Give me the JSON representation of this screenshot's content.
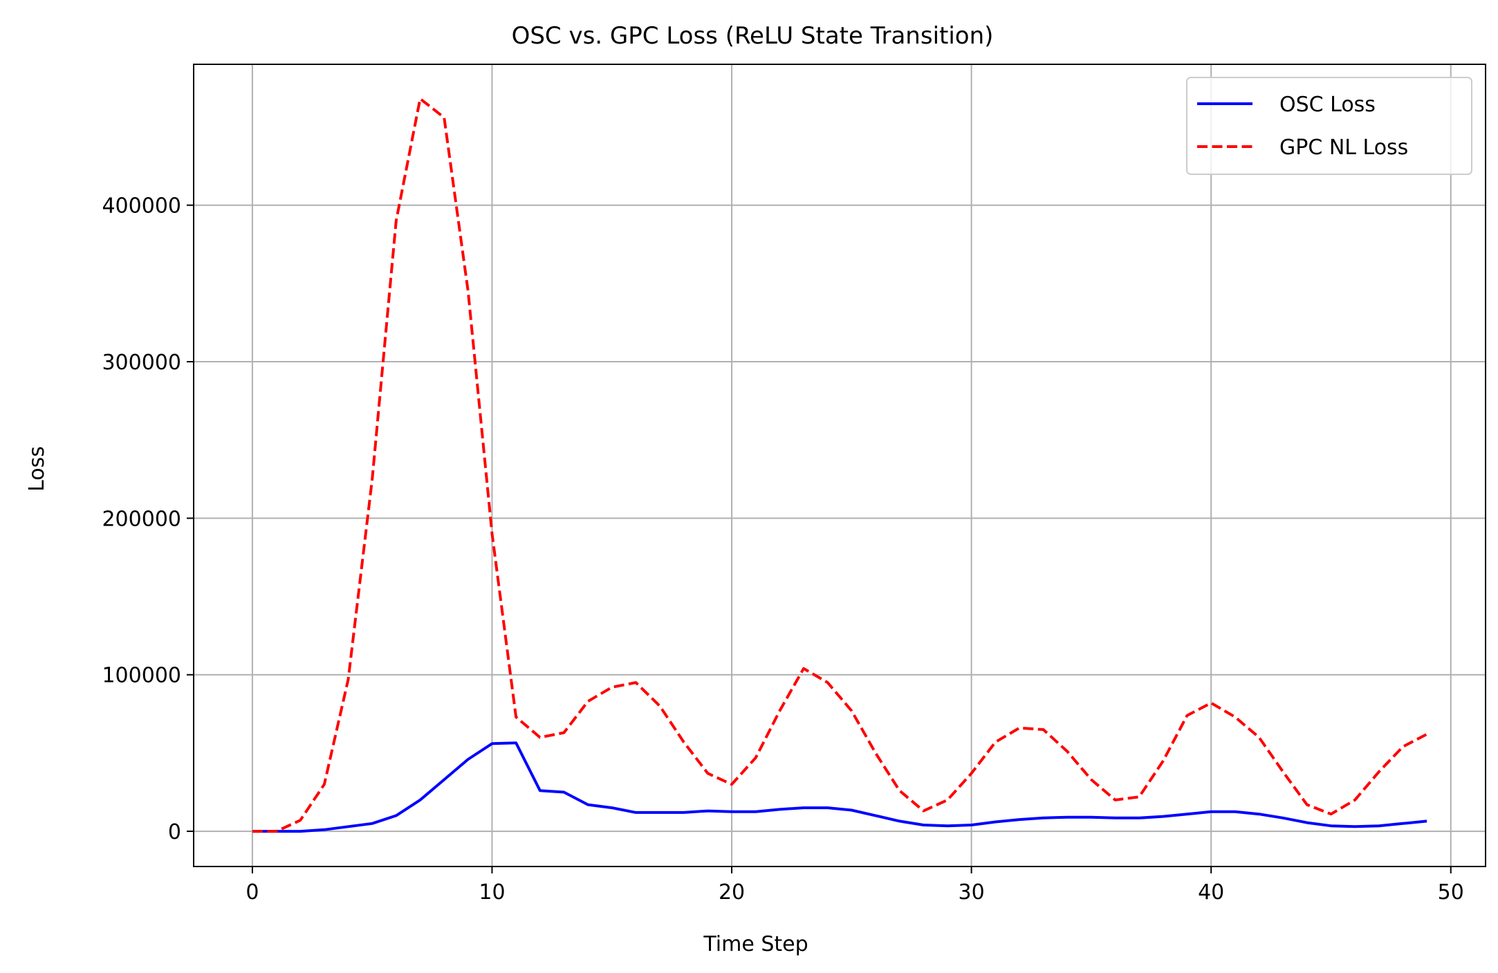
{
  "chart_data": {
    "type": "line",
    "title": "OSC vs. GPC Loss (ReLU State Transition)",
    "xlabel": "Time Step",
    "ylabel": "Loss",
    "xlim": [
      -2.45,
      51.45
    ],
    "ylim": [
      -22500,
      490000
    ],
    "xticks": [
      0,
      10,
      20,
      30,
      40,
      50
    ],
    "yticks": [
      0,
      100000,
      200000,
      300000,
      400000
    ],
    "grid": true,
    "legend": "top-right",
    "x": [
      0,
      1,
      2,
      3,
      4,
      5,
      6,
      7,
      8,
      9,
      10,
      11,
      12,
      13,
      14,
      15,
      16,
      17,
      18,
      19,
      20,
      21,
      22,
      23,
      24,
      25,
      26,
      27,
      28,
      29,
      30,
      31,
      32,
      33,
      34,
      35,
      36,
      37,
      38,
      39,
      40,
      41,
      42,
      43,
      44,
      45,
      46,
      47,
      48,
      49
    ],
    "series": [
      {
        "name": "OSC Loss",
        "color": "#0000ff",
        "dash": "solid",
        "values": [
          0,
          0,
          0,
          1000,
          3000,
          5000,
          10000,
          20000,
          33000,
          46000,
          56000,
          56500,
          26000,
          25000,
          17000,
          15000,
          12000,
          12000,
          12000,
          13000,
          12500,
          12500,
          14000,
          15000,
          15000,
          13500,
          10000,
          6500,
          4000,
          3500,
          4000,
          6000,
          7500,
          8500,
          9000,
          9000,
          8500,
          8500,
          9500,
          11000,
          12500,
          12500,
          11000,
          8500,
          5500,
          3500,
          3000,
          3500,
          5000,
          6500
        ]
      },
      {
        "name": "GPC NL Loss",
        "color": "#ff0000",
        "dash": "dashed",
        "values": [
          0,
          0,
          7000,
          30000,
          97000,
          225000,
          390000,
          468000,
          456000,
          345000,
          190000,
          73000,
          60000,
          63000,
          83000,
          92000,
          95000,
          80000,
          57000,
          37000,
          30000,
          47000,
          77000,
          104000,
          95000,
          77000,
          50000,
          26000,
          13000,
          20000,
          37000,
          57000,
          66000,
          65000,
          51000,
          33000,
          20000,
          22000,
          45000,
          74000,
          82000,
          73000,
          60000,
          38000,
          17000,
          11000,
          20000,
          38000,
          54000,
          62000
        ]
      }
    ]
  }
}
